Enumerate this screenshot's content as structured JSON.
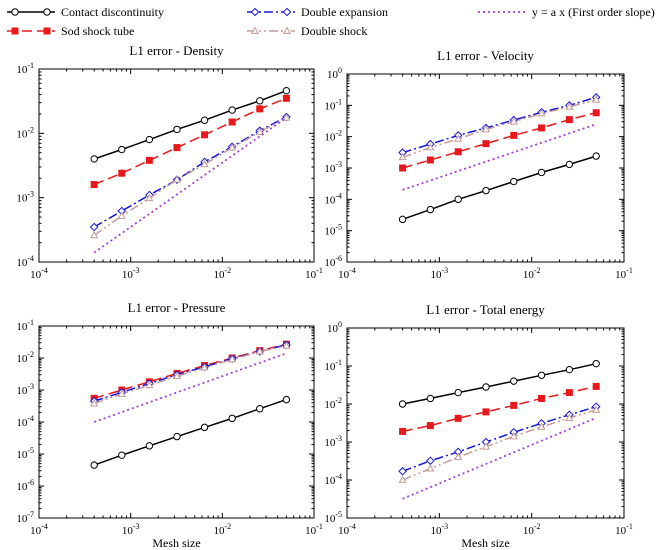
{
  "colors": {
    "contact": "#000000",
    "sod": "#e8191b",
    "expansion": "#1515d8",
    "shock": "#c49a98",
    "slope": "#a43fd6"
  },
  "legend": [
    {
      "label": "Contact discontinuity",
      "series": "contact",
      "dash": "",
      "marker": "circle"
    },
    {
      "label": "Sod shock tube",
      "series": "sod",
      "dash": "10,5",
      "marker": "square"
    },
    {
      "label": "Double expansion",
      "series": "expansion",
      "dash": "9,3,2,3",
      "marker": "diamond"
    },
    {
      "label": "Double shock",
      "series": "shock",
      "dash": "9,3,2,3,2,3",
      "marker": "triangle"
    },
    {
      "label": "y = a x (First order slope)",
      "series": "slope",
      "dash": "2,3",
      "marker": "none"
    }
  ],
  "chart_data": [
    {
      "type": "line",
      "title": "L1 error - Density",
      "xlabel": "",
      "ylabel": "",
      "xscale": "log",
      "yscale": "log",
      "xlim": [
        0.0001,
        0.1
      ],
      "ylim": [
        0.0001,
        0.1
      ],
      "x_ticks": [
        "10-4",
        "10-3",
        "10-2",
        "10-1"
      ],
      "y_ticks": [
        "10-4",
        "10-3",
        "10-2",
        "10-1"
      ],
      "x_tick_values": [
        0.0001,
        0.001,
        0.01,
        0.1
      ],
      "y_tick_values": [
        0.0001,
        0.001,
        0.01,
        0.1
      ],
      "x": [
        0.0004,
        0.0008,
        0.0016,
        0.0032,
        0.0064,
        0.0128,
        0.0256,
        0.05
      ],
      "series": [
        {
          "key": "contact",
          "values": [
            0.004,
            0.0056,
            0.008,
            0.0115,
            0.016,
            0.023,
            0.032,
            0.046
          ]
        },
        {
          "key": "sod",
          "values": [
            0.0016,
            0.0024,
            0.0038,
            0.006,
            0.0095,
            0.015,
            0.024,
            0.035
          ]
        },
        {
          "key": "expansion",
          "values": [
            0.00035,
            0.00062,
            0.0011,
            0.0019,
            0.0036,
            0.0062,
            0.011,
            0.018
          ]
        },
        {
          "key": "shock",
          "values": [
            0.00026,
            0.00052,
            0.00098,
            0.0019,
            0.0033,
            0.006,
            0.0105,
            0.0175
          ]
        },
        {
          "key": "slope",
          "x": [
            0.0004,
            0.05
          ],
          "values": [
            0.00014,
            0.0175
          ]
        }
      ]
    },
    {
      "type": "line",
      "title": "L1 error - Velocity",
      "xlabel": "",
      "ylabel": "",
      "xscale": "log",
      "yscale": "log",
      "xlim": [
        0.0001,
        0.1
      ],
      "ylim": [
        1e-06,
        1
      ],
      "x_ticks": [
        "10-4",
        "10-3",
        "10-2",
        "10-1"
      ],
      "y_ticks": [
        "10-6",
        "10-5",
        "10-4",
        "10-3",
        "10-2",
        "10-1",
        "100"
      ],
      "x_tick_values": [
        0.0001,
        0.001,
        0.01,
        0.1
      ],
      "y_tick_values": [
        1e-06,
        1e-05,
        0.0001,
        0.001,
        0.01,
        0.1,
        1
      ],
      "x": [
        0.0004,
        0.0008,
        0.0016,
        0.0032,
        0.0064,
        0.0128,
        0.0256,
        0.05
      ],
      "series": [
        {
          "key": "contact",
          "values": [
            2.3e-05,
            4.7e-05,
            0.0001,
            0.00019,
            0.00037,
            0.00072,
            0.0013,
            0.0024
          ]
        },
        {
          "key": "sod",
          "values": [
            0.001,
            0.0018,
            0.0033,
            0.006,
            0.011,
            0.019,
            0.035,
            0.058
          ]
        },
        {
          "key": "expansion",
          "values": [
            0.0031,
            0.0058,
            0.011,
            0.019,
            0.034,
            0.06,
            0.1,
            0.18
          ]
        },
        {
          "key": "shock",
          "values": [
            0.0022,
            0.0045,
            0.0085,
            0.017,
            0.03,
            0.055,
            0.09,
            0.15
          ]
        },
        {
          "key": "slope",
          "x": [
            0.0004,
            0.05
          ],
          "values": [
            0.0002,
            0.025
          ]
        }
      ]
    },
    {
      "type": "line",
      "title": "L1 error - Pressure",
      "xlabel": "Mesh size",
      "ylabel": "",
      "xscale": "log",
      "yscale": "log",
      "xlim": [
        0.0001,
        0.1
      ],
      "ylim": [
        1e-07,
        0.1
      ],
      "x_ticks": [
        "10-4",
        "10-3",
        "10-2",
        "10-1"
      ],
      "y_ticks": [
        "10-7",
        "10-6",
        "10-5",
        "10-4",
        "10-3",
        "10-2",
        "10-1"
      ],
      "x_tick_values": [
        0.0001,
        0.001,
        0.01,
        0.1
      ],
      "y_tick_values": [
        1e-07,
        1e-06,
        1e-05,
        0.0001,
        0.001,
        0.01,
        0.1
      ],
      "x": [
        0.0004,
        0.0008,
        0.0016,
        0.0032,
        0.0064,
        0.0128,
        0.0256,
        0.05
      ],
      "series": [
        {
          "key": "contact",
          "values": [
            4.5e-06,
            9.2e-06,
            1.8e-05,
            3.5e-05,
            6.8e-05,
            0.00013,
            0.00026,
            0.0005
          ]
        },
        {
          "key": "sod",
          "values": [
            0.00055,
            0.001,
            0.0018,
            0.0033,
            0.0058,
            0.01,
            0.017,
            0.027
          ]
        },
        {
          "key": "expansion",
          "values": [
            0.00045,
            0.00085,
            0.0016,
            0.003,
            0.0053,
            0.0095,
            0.016,
            0.026
          ]
        },
        {
          "key": "shock",
          "values": [
            0.00038,
            0.00075,
            0.0014,
            0.0027,
            0.005,
            0.009,
            0.016,
            0.024
          ]
        },
        {
          "key": "slope",
          "x": [
            0.0004,
            0.05
          ],
          "values": [
            0.0001,
            0.014
          ]
        }
      ]
    },
    {
      "type": "line",
      "title": "L1 error - Total energy",
      "xlabel": "Mesh size",
      "ylabel": "",
      "xscale": "log",
      "yscale": "log",
      "xlim": [
        0.0001,
        0.1
      ],
      "ylim": [
        1e-05,
        1
      ],
      "x_ticks": [
        "10-4",
        "10-3",
        "10-2",
        "10-1"
      ],
      "y_ticks": [
        "10-5",
        "10-4",
        "10-3",
        "10-2",
        "10-1",
        "100"
      ],
      "x_tick_values": [
        0.0001,
        0.001,
        0.01,
        0.1
      ],
      "y_tick_values": [
        1e-05,
        0.0001,
        0.001,
        0.01,
        0.1,
        1
      ],
      "x": [
        0.0004,
        0.0008,
        0.0016,
        0.0032,
        0.0064,
        0.0128,
        0.0256,
        0.05
      ],
      "series": [
        {
          "key": "contact",
          "values": [
            0.01,
            0.014,
            0.02,
            0.028,
            0.04,
            0.057,
            0.08,
            0.115
          ]
        },
        {
          "key": "sod",
          "values": [
            0.0019,
            0.0027,
            0.0042,
            0.0062,
            0.0092,
            0.014,
            0.02,
            0.029
          ]
        },
        {
          "key": "expansion",
          "values": [
            0.00017,
            0.00032,
            0.00055,
            0.001,
            0.0018,
            0.0031,
            0.0052,
            0.0085
          ]
        },
        {
          "key": "shock",
          "values": [
            0.0001,
            0.0002,
            0.0004,
            0.00075,
            0.0014,
            0.0025,
            0.0043,
            0.007
          ]
        },
        {
          "key": "slope",
          "x": [
            0.0004,
            0.05
          ],
          "values": [
            3.2e-05,
            0.0043
          ]
        }
      ]
    }
  ]
}
